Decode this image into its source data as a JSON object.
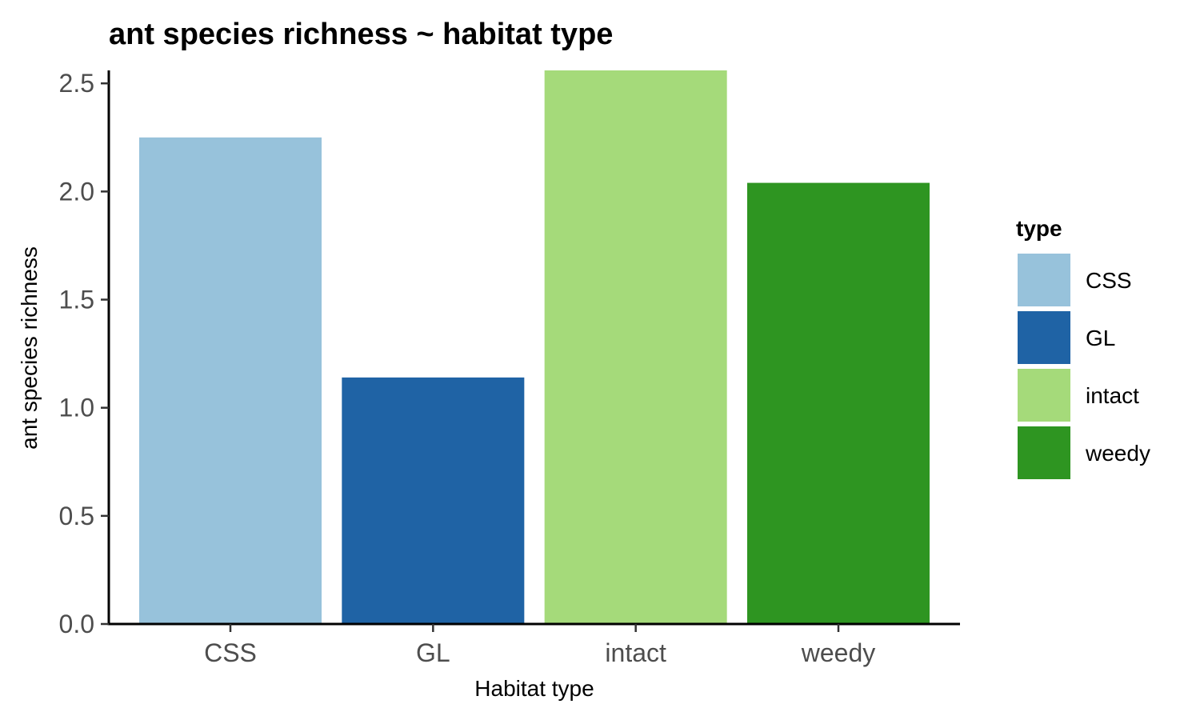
{
  "chart_data": {
    "type": "bar",
    "title": "ant species richness ~ habitat type",
    "xlabel": "Habitat type",
    "ylabel": "ant species richness",
    "categories": [
      "CSS",
      "GL",
      "intact",
      "weedy"
    ],
    "values": [
      2.25,
      1.14,
      2.56,
      2.04
    ],
    "colors": [
      "#97c2db",
      "#1f63a5",
      "#a5da7a",
      "#2e9521"
    ],
    "ylim": [
      0,
      2.56
    ],
    "yticks": [
      "0.0",
      "0.5",
      "1.0",
      "1.5",
      "2.0",
      "2.5"
    ],
    "ytick_values": [
      0,
      0.5,
      1.0,
      1.5,
      2.0,
      2.5
    ],
    "grid": false,
    "legend": {
      "title": "type",
      "position": "right",
      "entries": [
        "CSS",
        "GL",
        "intact",
        "weedy"
      ]
    }
  }
}
